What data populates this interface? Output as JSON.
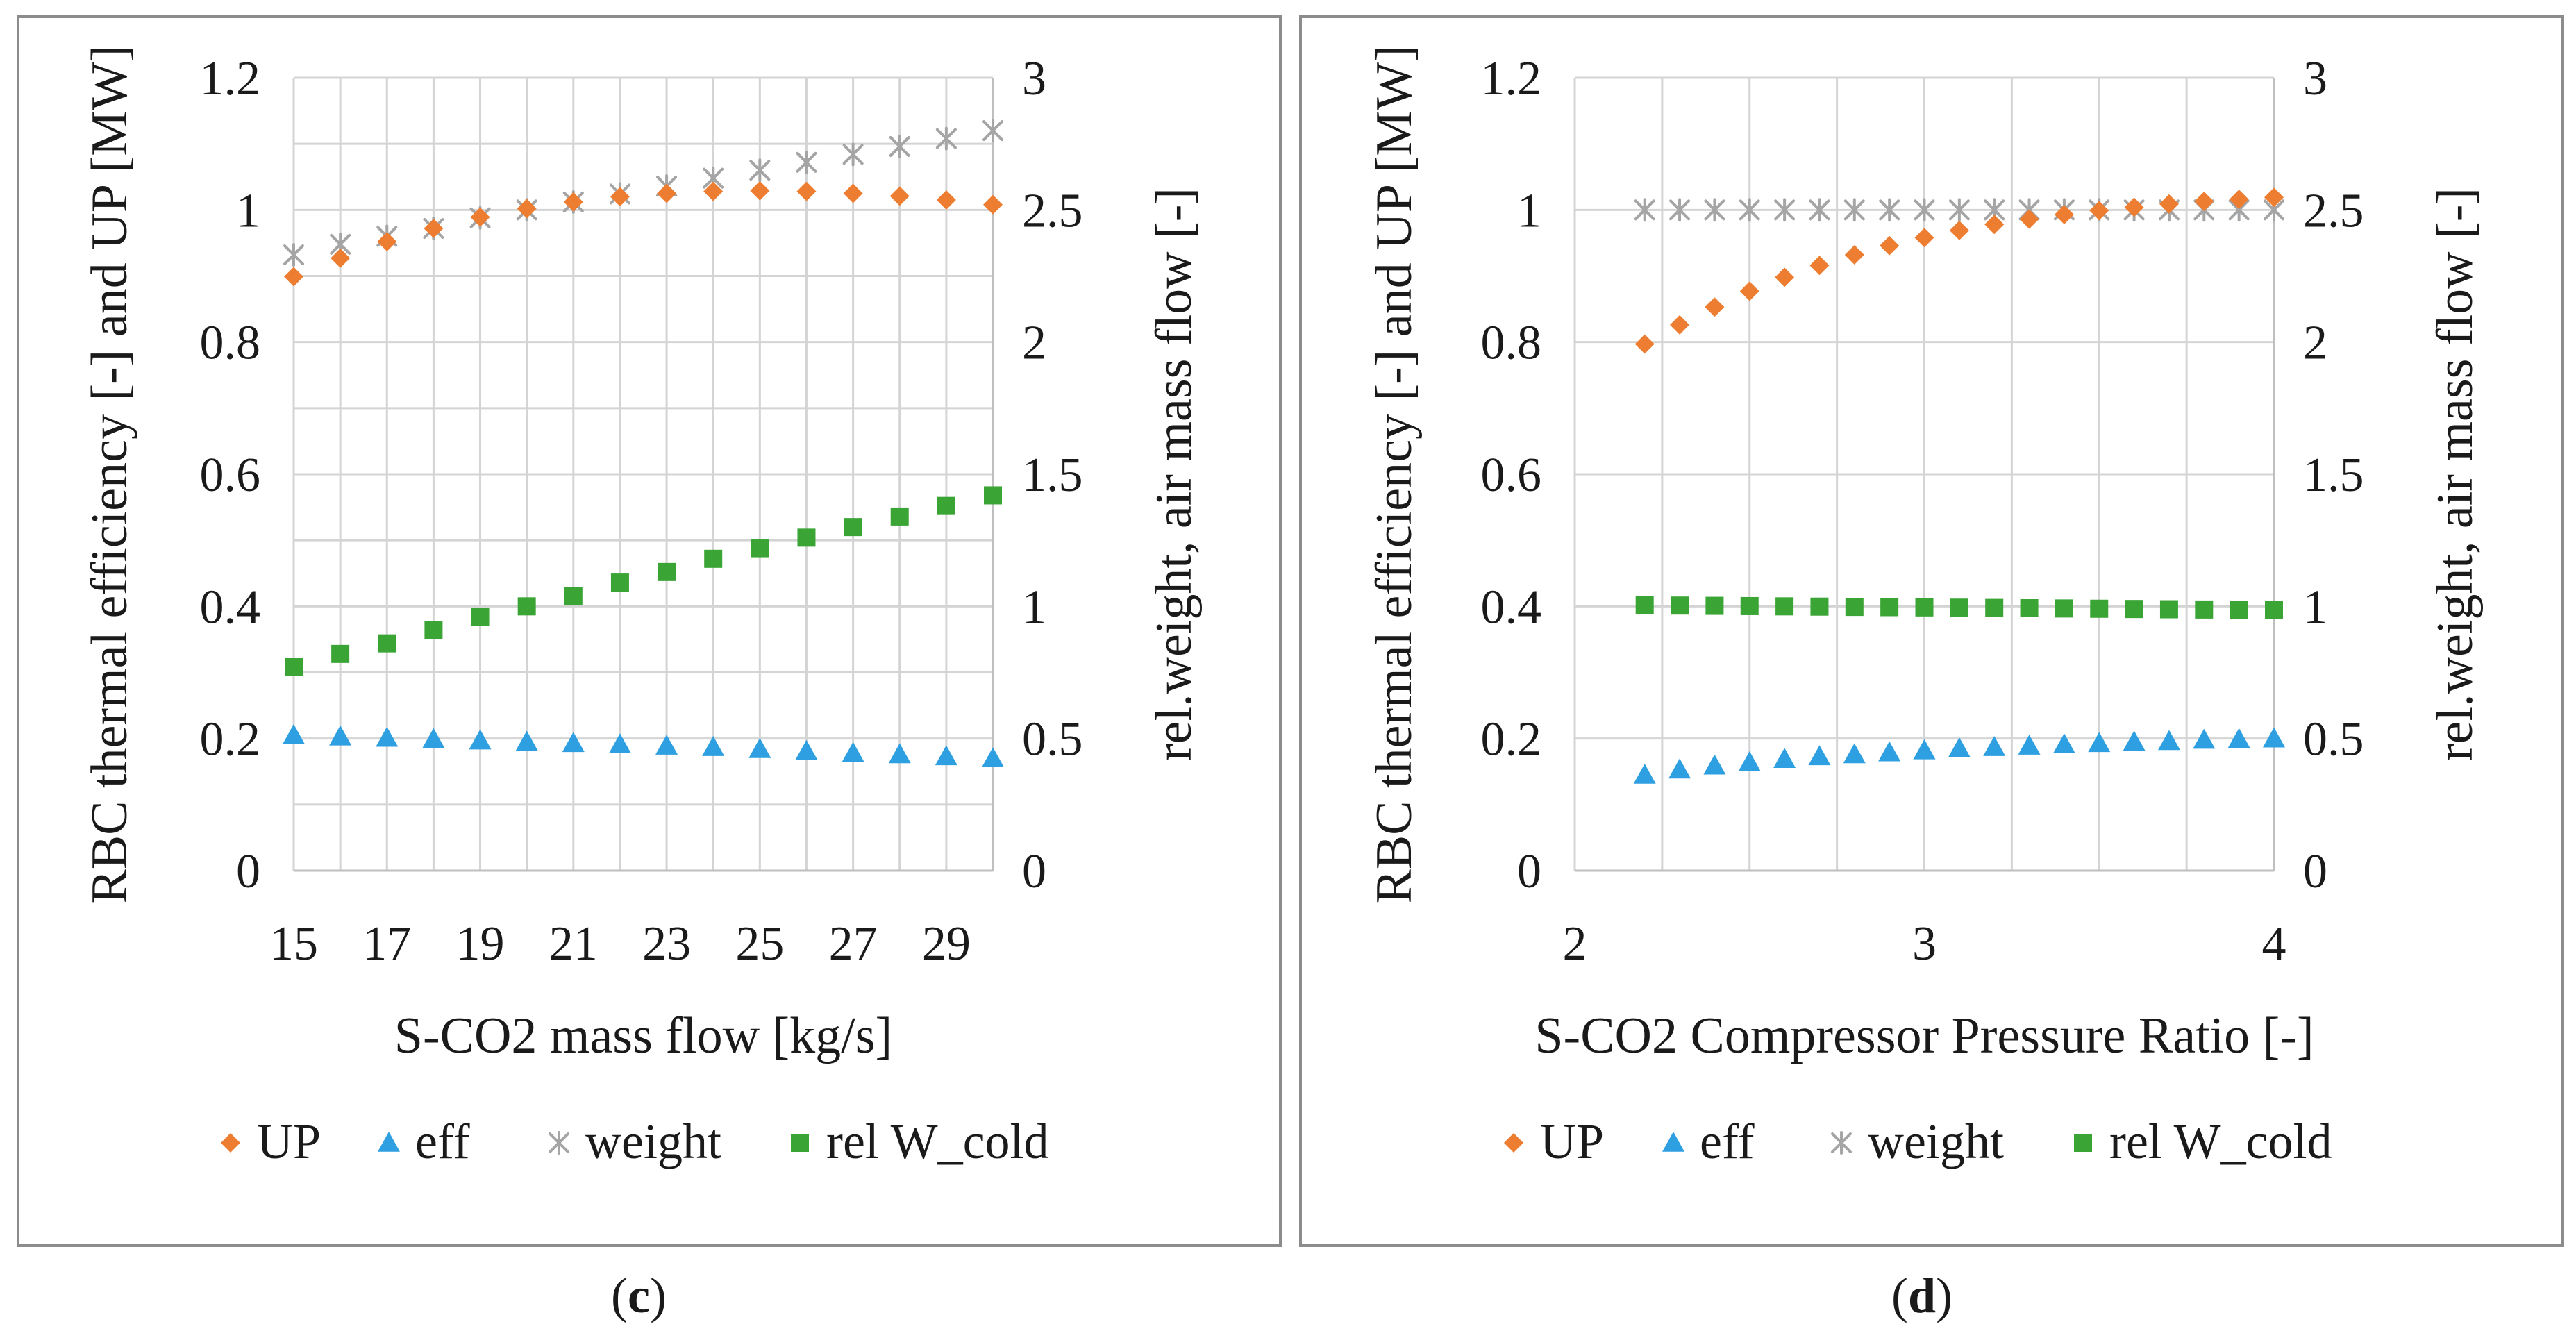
{
  "panels": [
    {
      "id": "c",
      "caption": "c",
      "chart_data": {
        "type": "scatter",
        "title": "",
        "xlabel": "S-CO2 mass flow [kg/s]",
        "ylabel": "RBC thermal efficiency [-] and UP [MW]",
        "y2label": "rel.weight, air mass flow [-]",
        "xlim": [
          15,
          30
        ],
        "xticks": [
          15,
          17,
          19,
          21,
          23,
          25,
          27,
          29
        ],
        "xtick_labels": [
          "15",
          "17",
          "19",
          "21",
          "23",
          "25",
          "27",
          "29"
        ],
        "ylim": [
          0,
          1.2
        ],
        "yticks": [
          0,
          0.2,
          0.4,
          0.6,
          0.8,
          1,
          1.2
        ],
        "ytick_labels": [
          "0",
          "0.2",
          "0.4",
          "0.6",
          "0.8",
          "1",
          "1.2"
        ],
        "y2lim": [
          0,
          3
        ],
        "y2ticks": [
          0,
          0.5,
          1,
          1.5,
          2,
          2.5,
          3
        ],
        "y2tick_labels": [
          "0",
          "0.5",
          "1",
          "1.5",
          "2",
          "2.5",
          "3"
        ],
        "vgrid": [
          15,
          16,
          17,
          18,
          19,
          20,
          21,
          22,
          23,
          24,
          25,
          26,
          27,
          28,
          29,
          30
        ],
        "hgrid": [
          0.1,
          0.2,
          0.3,
          0.4,
          0.5,
          0.6,
          0.7,
          0.8,
          0.9,
          1.0,
          1.1,
          1.2
        ],
        "grid": true,
        "legend_position": "bottom",
        "series": [
          {
            "name": "UP",
            "marker": "diamond",
            "color": "#ED7D31",
            "axis": "y",
            "x": [
              15,
              16,
              17,
              18,
              19,
              20,
              21,
              22,
              23,
              24,
              25,
              26,
              27,
              28,
              29,
              30
            ],
            "values": [
              0.899,
              0.927,
              0.952,
              0.972,
              0.989,
              1.002,
              1.012,
              1.02,
              1.025,
              1.028,
              1.029,
              1.028,
              1.025,
              1.021,
              1.015,
              1.008
            ]
          },
          {
            "name": "eff",
            "marker": "triangle",
            "color": "#2E9FE0",
            "axis": "y",
            "x": [
              15,
              16,
              17,
              18,
              19,
              20,
              21,
              22,
              23,
              24,
              25,
              26,
              27,
              28,
              29,
              30
            ],
            "values": [
              0.205,
              0.203,
              0.201,
              0.199,
              0.197,
              0.195,
              0.193,
              0.191,
              0.189,
              0.187,
              0.184,
              0.181,
              0.178,
              0.176,
              0.173,
              0.17
            ]
          },
          {
            "name": "weight",
            "marker": "star",
            "color": "#A5A5A5",
            "axis": "y2",
            "x": [
              15,
              16,
              17,
              18,
              19,
              20,
              21,
              22,
              23,
              24,
              25,
              26,
              27,
              28,
              29,
              30
            ],
            "values": [
              2.33,
              2.37,
              2.4,
              2.43,
              2.47,
              2.5,
              2.53,
              2.56,
              2.59,
              2.62,
              2.65,
              2.68,
              2.71,
              2.74,
              2.77,
              2.8
            ]
          },
          {
            "name": "rel W_cold",
            "marker": "square",
            "color": "#3AA535",
            "axis": "y2",
            "x": [
              15,
              16,
              17,
              18,
              19,
              20,
              21,
              22,
              23,
              24,
              25,
              26,
              27,
              28,
              29,
              30
            ],
            "values": [
              0.77,
              0.82,
              0.86,
              0.91,
              0.96,
              1.0,
              1.04,
              1.09,
              1.13,
              1.18,
              1.22,
              1.26,
              1.3,
              1.34,
              1.38,
              1.42
            ]
          }
        ]
      }
    },
    {
      "id": "d",
      "caption": "d",
      "chart_data": {
        "type": "scatter",
        "title": "",
        "xlabel": "S-CO2 Compressor Pressure Ratio [-]",
        "ylabel": "RBC thermal efficiency [-] and UP [MW]",
        "y2label": "rel.weight, air mass flow [-]",
        "xlim": [
          2,
          4
        ],
        "xticks": [
          2,
          3,
          4
        ],
        "xtick_labels": [
          "2",
          "3",
          "4"
        ],
        "ylim": [
          0,
          1.2
        ],
        "yticks": [
          0,
          0.2,
          0.4,
          0.6,
          0.8,
          1,
          1.2
        ],
        "ytick_labels": [
          "0",
          "0.2",
          "0.4",
          "0.6",
          "0.8",
          "1",
          "1.2"
        ],
        "y2lim": [
          0,
          3
        ],
        "y2ticks": [
          0,
          0.5,
          1,
          1.5,
          2,
          2.5,
          3
        ],
        "y2tick_labels": [
          "0",
          "0.5",
          "1",
          "1.5",
          "2",
          "2.5",
          "3"
        ],
        "vgrid": [
          2.0,
          2.25,
          2.5,
          2.75,
          3.0,
          3.25,
          3.5,
          3.75,
          4.0
        ],
        "hgrid": [
          0.2,
          0.4,
          0.6,
          0.8,
          1.0,
          1.2
        ],
        "grid": true,
        "legend_position": "bottom",
        "series": [
          {
            "name": "UP",
            "marker": "diamond",
            "color": "#ED7D31",
            "axis": "y",
            "x": [
              2.2,
              2.3,
              2.4,
              2.5,
              2.6,
              2.7,
              2.8,
              2.9,
              3.0,
              3.1,
              3.2,
              3.3,
              3.4,
              3.5,
              3.6,
              3.7,
              3.8,
              3.9,
              4.0
            ],
            "values": [
              0.797,
              0.826,
              0.853,
              0.877,
              0.898,
              0.916,
              0.932,
              0.946,
              0.958,
              0.969,
              0.978,
              0.986,
              0.993,
              0.999,
              1.004,
              1.009,
              1.013,
              1.016,
              1.019
            ]
          },
          {
            "name": "eff",
            "marker": "triangle",
            "color": "#2E9FE0",
            "axis": "y",
            "x": [
              2.2,
              2.3,
              2.4,
              2.5,
              2.6,
              2.7,
              2.8,
              2.9,
              3.0,
              3.1,
              3.2,
              3.3,
              3.4,
              3.5,
              3.6,
              3.7,
              3.8,
              3.9,
              4.0
            ],
            "values": [
              0.145,
              0.153,
              0.159,
              0.164,
              0.169,
              0.173,
              0.176,
              0.179,
              0.182,
              0.185,
              0.187,
              0.189,
              0.191,
              0.193,
              0.195,
              0.196,
              0.198,
              0.199,
              0.2
            ]
          },
          {
            "name": "weight",
            "marker": "star",
            "color": "#A5A5A5",
            "axis": "y2",
            "x": [
              2.2,
              2.3,
              2.4,
              2.5,
              2.6,
              2.7,
              2.8,
              2.9,
              3.0,
              3.1,
              3.2,
              3.3,
              3.4,
              3.5,
              3.6,
              3.7,
              3.8,
              3.9,
              4.0
            ],
            "values": [
              2.5,
              2.5,
              2.5,
              2.5,
              2.5,
              2.5,
              2.5,
              2.5,
              2.5,
              2.5,
              2.5,
              2.5,
              2.5,
              2.5,
              2.5,
              2.5,
              2.5,
              2.5,
              2.5
            ]
          },
          {
            "name": "rel W_cold",
            "marker": "square",
            "color": "#3AA535",
            "axis": "y2",
            "x": [
              2.2,
              2.3,
              2.4,
              2.5,
              2.6,
              2.7,
              2.8,
              2.9,
              3.0,
              3.1,
              3.2,
              3.3,
              3.4,
              3.5,
              3.6,
              3.7,
              3.8,
              3.9,
              4.0
            ],
            "values": [
              1.005,
              1.003,
              1.002,
              1.001,
              1.0,
              0.999,
              0.998,
              0.997,
              0.996,
              0.995,
              0.994,
              0.993,
              0.992,
              0.991,
              0.99,
              0.989,
              0.988,
              0.987,
              0.986
            ]
          }
        ]
      }
    }
  ]
}
